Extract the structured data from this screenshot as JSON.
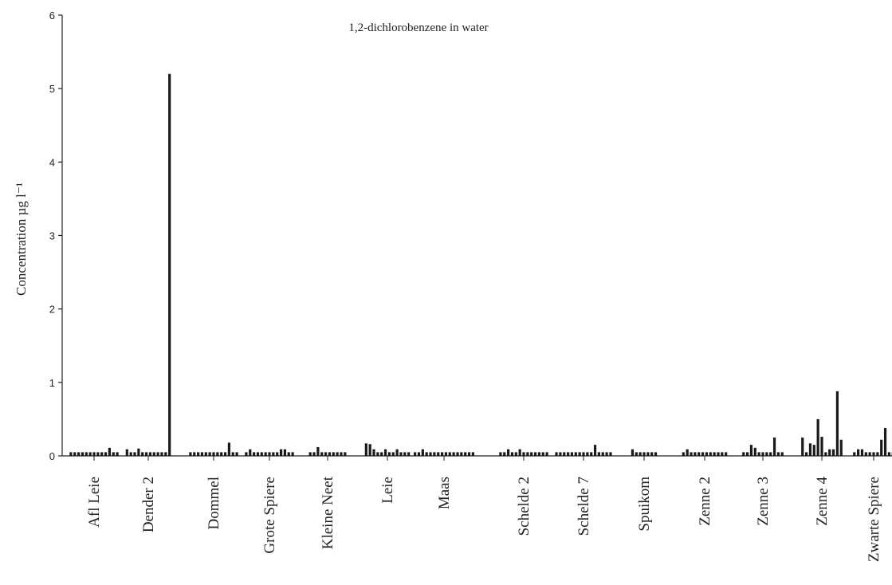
{
  "chart_data": {
    "type": "bar",
    "title": "1,2-dichlorobenzene in water",
    "xlabel": "",
    "ylabel": "Concentration µg l⁻¹",
    "ylim": [
      0,
      6
    ],
    "yticks": [
      "0",
      "1",
      "2",
      "3",
      "4",
      "5",
      "6"
    ],
    "legend": "none",
    "grid": false,
    "bar_color": "#1a1a1a",
    "groups": [
      {
        "name": "Afl Leie",
        "values": [
          0.05,
          0.05,
          0.05,
          0.05,
          0.05,
          0.05,
          0.05,
          0.05,
          0.05,
          0.05,
          0.11,
          0.05,
          0.05
        ]
      },
      {
        "name": "Dender 2",
        "values": [
          0.09,
          0.05,
          0.05,
          0.1,
          0.05,
          0.05,
          0.05,
          0.05,
          0.05,
          0.05,
          0.05,
          5.2
        ]
      },
      {
        "name": "Dommel",
        "values": [
          0.05,
          0.05,
          0.05,
          0.05,
          0.05,
          0.05,
          0.05,
          0.05,
          0.05,
          0.05,
          0.18,
          0.05,
          0.05
        ]
      },
      {
        "name": "Grote Spiere",
        "values": [
          0.05,
          0.09,
          0.05,
          0.05,
          0.05,
          0.05,
          0.05,
          0.05,
          0.05,
          0.09,
          0.09,
          0.05,
          0.05
        ]
      },
      {
        "name": "Kleine Neet",
        "values": [
          0.05,
          0.05,
          0.12,
          0.05,
          0.05,
          0.05,
          0.05,
          0.05,
          0.05,
          0.05
        ]
      },
      {
        "name": "Leie",
        "values": [
          0.17,
          0.16,
          0.09,
          0.05,
          0.05,
          0.09,
          0.05,
          0.05,
          0.09,
          0.05,
          0.05,
          0.05
        ]
      },
      {
        "name": "Maas",
        "values": [
          0.05,
          0.05,
          0.09,
          0.05,
          0.05,
          0.05,
          0.05,
          0.05,
          0.05,
          0.05,
          0.05,
          0.05,
          0.05,
          0.05,
          0.05,
          0.05
        ]
      },
      {
        "name": "Schelde 2",
        "values": [
          0.05,
          0.05,
          0.09,
          0.05,
          0.05,
          0.09,
          0.05,
          0.05,
          0.05,
          0.05,
          0.05,
          0.05,
          0.05
        ]
      },
      {
        "name": "Schelde 7",
        "values": [
          0.05,
          0.05,
          0.05,
          0.05,
          0.05,
          0.05,
          0.05,
          0.05,
          0.05,
          0.05,
          0.15,
          0.05,
          0.05,
          0.05,
          0.05
        ]
      },
      {
        "name": "Spuikom",
        "values": [
          0.09,
          0.05,
          0.05,
          0.05,
          0.05,
          0.05,
          0.05
        ]
      },
      {
        "name": "Zenne 2",
        "values": [
          0.05,
          0.09,
          0.05,
          0.05,
          0.05,
          0.05,
          0.05,
          0.05,
          0.05,
          0.05,
          0.05,
          0.05
        ]
      },
      {
        "name": "Zenne 3",
        "values": [
          0.05,
          0.05,
          0.15,
          0.11,
          0.05,
          0.05,
          0.05,
          0.05,
          0.25,
          0.05,
          0.05
        ]
      },
      {
        "name": "Zenne 4",
        "values": [
          0.25,
          0.05,
          0.17,
          0.15,
          0.5,
          0.26,
          0.05,
          0.09,
          0.09,
          0.88,
          0.22
        ]
      },
      {
        "name": "Zwarte Spiere",
        "values": [
          0.05,
          0.09,
          0.09,
          0.05,
          0.05,
          0.05,
          0.05,
          0.22,
          0.38,
          0.05,
          0.05
        ]
      }
    ]
  }
}
